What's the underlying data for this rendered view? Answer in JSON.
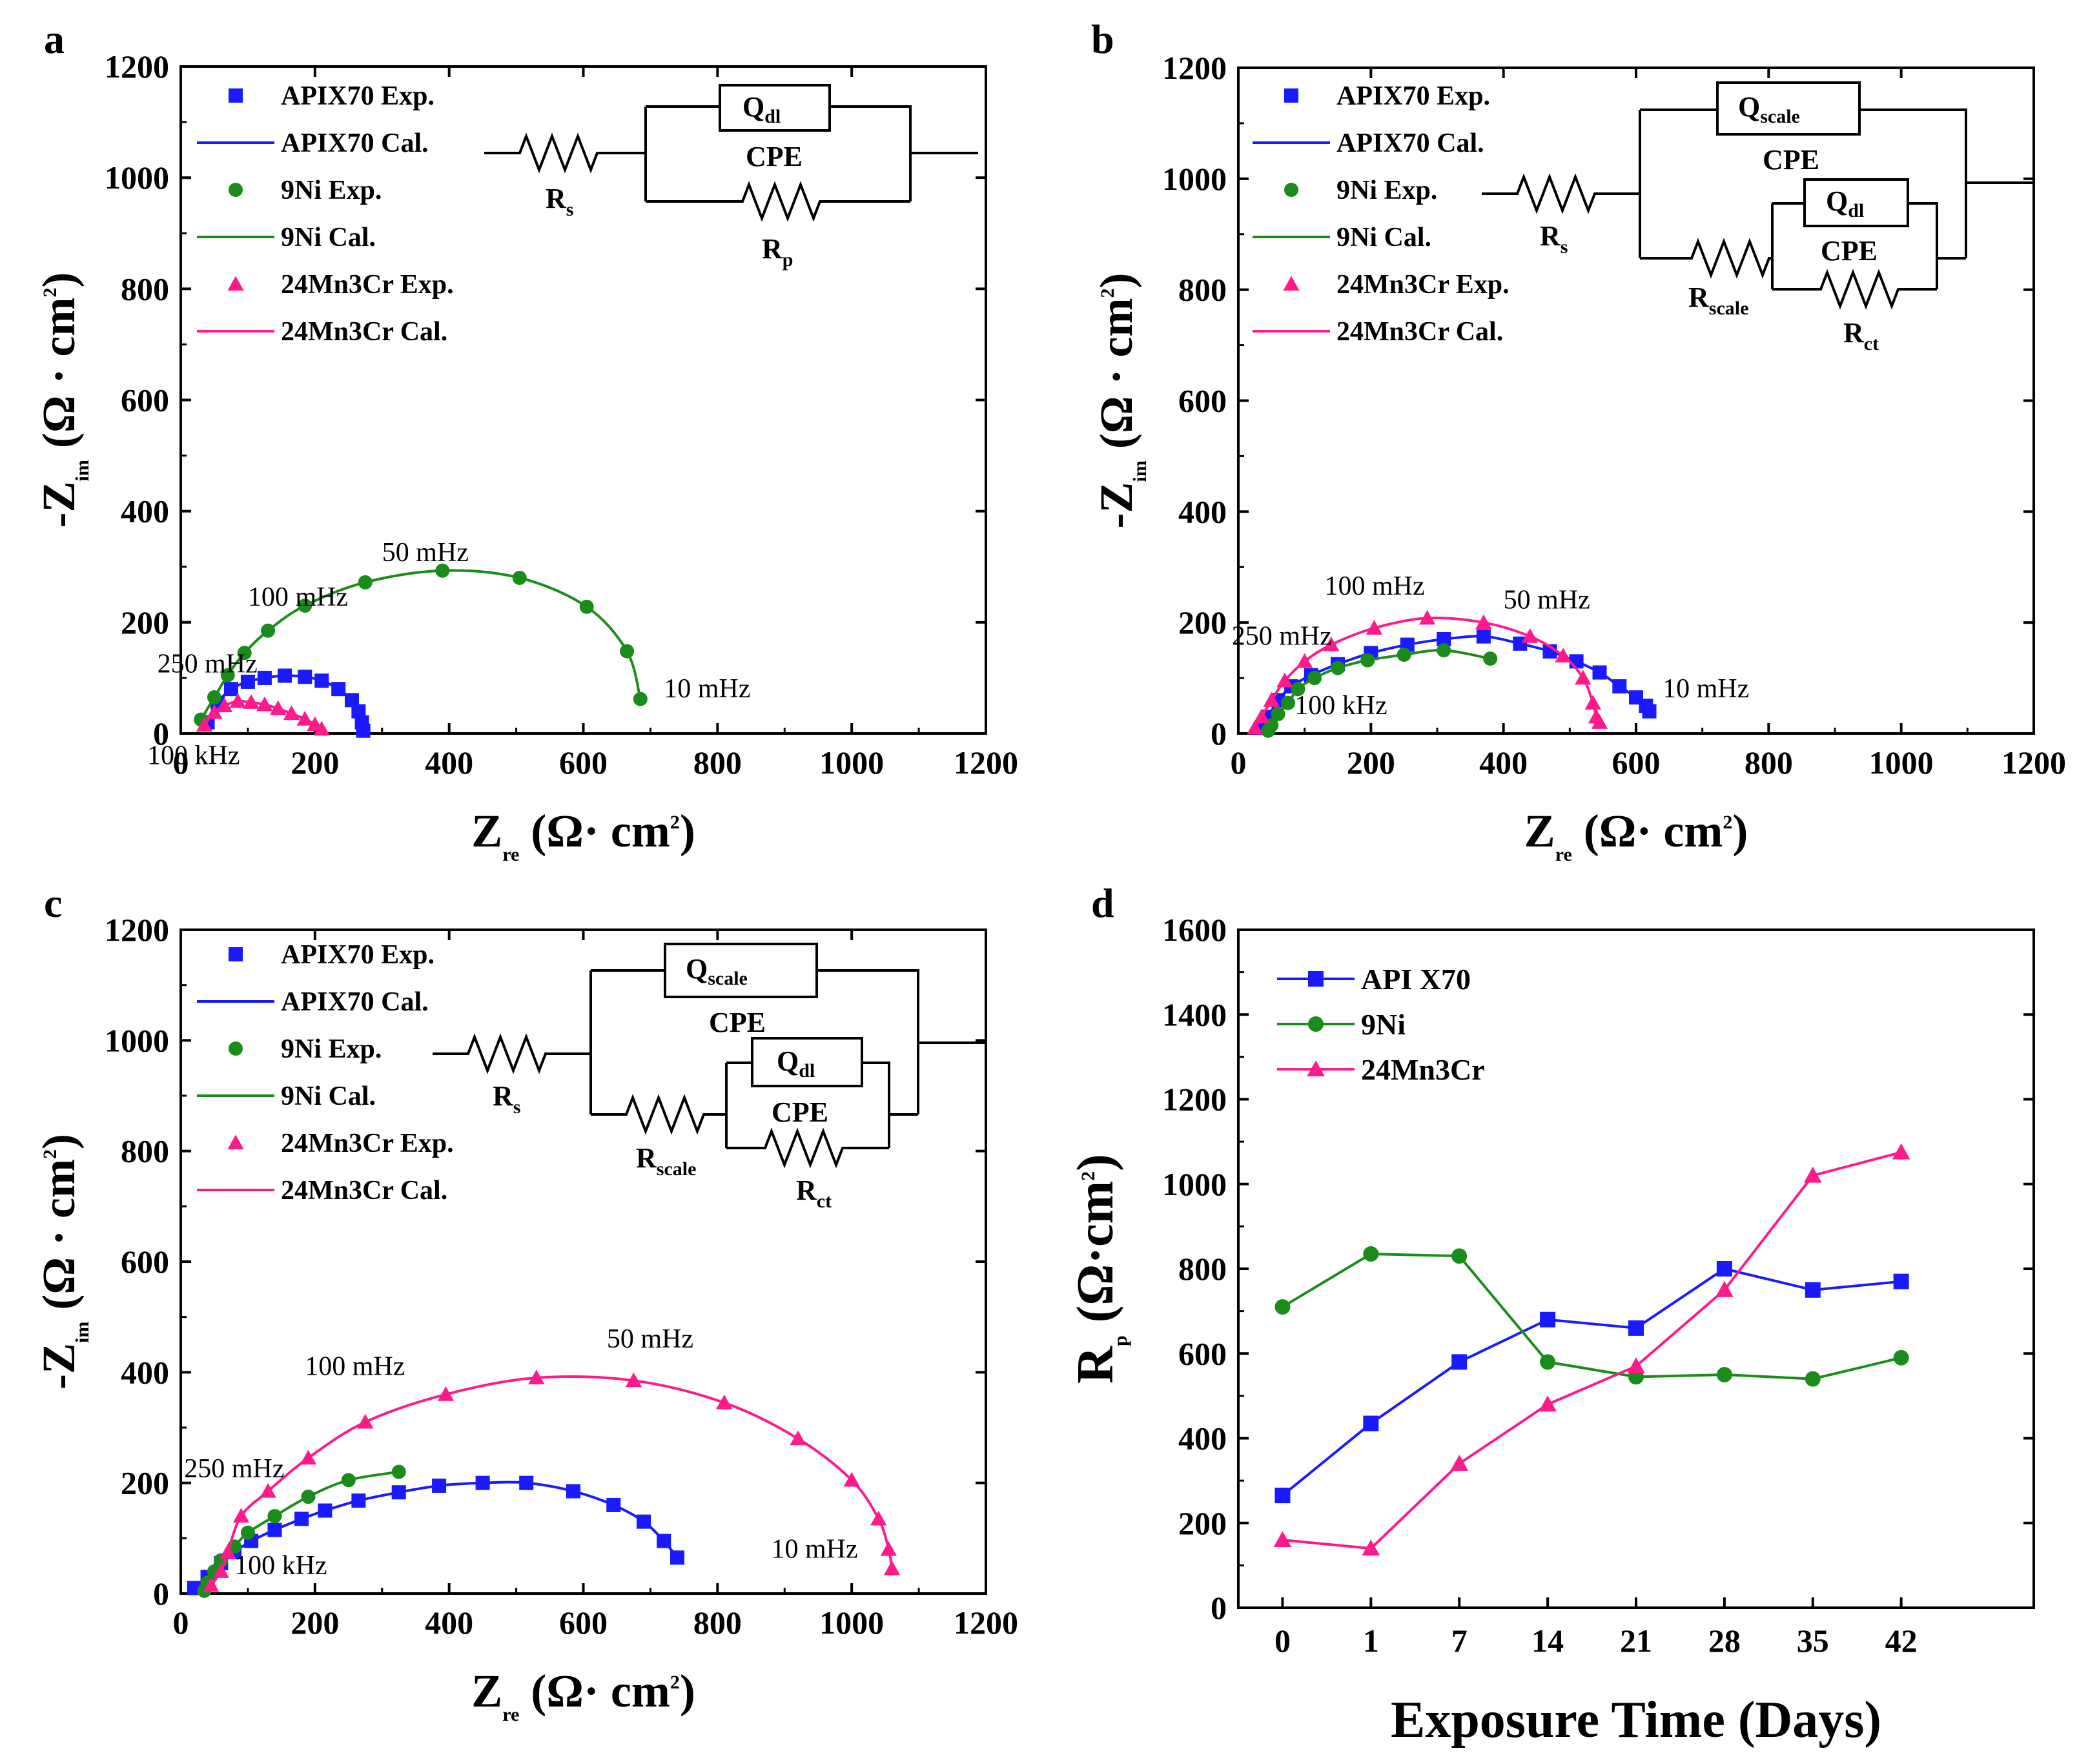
{
  "chart_data": [
    {
      "type": "scatter",
      "panel": "a",
      "title": "",
      "xlabel": {
        "main": "Z",
        "sub": "re",
        "unit": "(Ω· cm",
        "sup": "2",
        "close": ")"
      },
      "ylabel": {
        "main": "-Z",
        "sub": "im",
        "unit": "(Ω · cm",
        "sup": "2",
        "close": ")"
      },
      "xlim": [
        0,
        1200
      ],
      "ylim": [
        0,
        1200
      ],
      "xticks": [
        "0",
        "200",
        "400",
        "600",
        "800",
        "1000",
        "1200"
      ],
      "yticks": [
        "0",
        "200",
        "400",
        "600",
        "800",
        "1000",
        "1200"
      ],
      "legend": [
        "APIX70 Exp.",
        "APIX70 Cal.",
        "9Ni Exp.",
        "9Ni Cal.",
        "24Mn3Cr Exp.",
        "24Mn3Cr Cal."
      ],
      "circuit": {
        "rs": {
          "main": "R",
          "sub": "s"
        },
        "rp": {
          "main": "R",
          "sub": "p"
        },
        "q": {
          "main": "Q",
          "sub": "dl"
        },
        "cpe": "CPE"
      },
      "annotations": [
        {
          "text": "50 mHz",
          "x": 300,
          "y": 310
        },
        {
          "text": "100 mHz",
          "x": 100,
          "y": 230
        },
        {
          "text": "250 mHz",
          "x": -35,
          "y": 110
        },
        {
          "text": "10 mHz",
          "x": 720,
          "y": 65
        },
        {
          "text": "100 kHz",
          "x": -50,
          "y": -55
        }
      ],
      "series": [
        {
          "name": "APIX70",
          "color": "#1a1aff",
          "marker": "square",
          "x": [
            40,
            55,
            75,
            100,
            125,
            155,
            185,
            210,
            235,
            255,
            265,
            270,
            272
          ],
          "y": [
            20,
            55,
            80,
            93,
            100,
            104,
            102,
            95,
            80,
            60,
            40,
            20,
            5
          ]
        },
        {
          "name": "9Ni",
          "color": "#1a8c1a",
          "marker": "circle",
          "x": [
            30,
            50,
            70,
            95,
            130,
            185,
            275,
            390,
            505,
            605,
            665,
            685
          ],
          "y": [
            25,
            65,
            105,
            145,
            185,
            230,
            272,
            293,
            280,
            228,
            148,
            62
          ]
        },
        {
          "name": "24Mn3Cr",
          "color": "#ff1a8c",
          "marker": "triangle",
          "x": [
            35,
            50,
            65,
            85,
            105,
            125,
            145,
            165,
            185,
            200,
            210
          ],
          "y": [
            15,
            38,
            50,
            58,
            56,
            52,
            45,
            36,
            26,
            16,
            8
          ]
        }
      ]
    },
    {
      "type": "scatter",
      "panel": "b",
      "title": "",
      "xlabel": {
        "main": "Z",
        "sub": "re",
        "unit": "(Ω· cm",
        "sup": "2",
        "close": ")"
      },
      "ylabel": {
        "main": "-Z",
        "sub": "im",
        "unit": "(Ω · cm",
        "sup": "2",
        "close": ")"
      },
      "xlim": [
        0,
        1200
      ],
      "ylim": [
        0,
        1200
      ],
      "xticks": [
        "0",
        "200",
        "400",
        "600",
        "800",
        "1000",
        "1200"
      ],
      "yticks": [
        "0",
        "200",
        "400",
        "600",
        "800",
        "1000",
        "1200"
      ],
      "legend": [
        "APIX70 Exp.",
        "APIX70 Cal.",
        "9Ni Exp.",
        "9Ni Cal.",
        "24Mn3Cr Exp.",
        "24Mn3Cr Cal."
      ],
      "circuit": {
        "rs": {
          "main": "R",
          "sub": "s"
        },
        "rscale": {
          "main": "R",
          "sub": "scale"
        },
        "rct": {
          "main": "R",
          "sub": "ct"
        },
        "qscale": {
          "main": "Q",
          "sub": "scale"
        },
        "qdl": {
          "main": "Q",
          "sub": "dl"
        },
        "cpe": "CPE"
      },
      "annotations": [
        {
          "text": "100 mHz",
          "x": 130,
          "y": 250
        },
        {
          "text": "50 mHz",
          "x": 400,
          "y": 225
        },
        {
          "text": "250 mHz",
          "x": -10,
          "y": 160
        },
        {
          "text": "10 mHz",
          "x": 640,
          "y": 65
        },
        {
          "text": "100 kHz",
          "x": 85,
          "y": 35
        }
      ],
      "series": [
        {
          "name": "APIX70",
          "color": "#1a1aff",
          "marker": "square",
          "x": [
            35,
            45,
            60,
            80,
            110,
            150,
            200,
            255,
            310,
            370,
            425,
            470,
            510,
            545,
            575,
            600,
            615,
            620
          ],
          "y": [
            10,
            30,
            60,
            85,
            105,
            125,
            145,
            160,
            170,
            175,
            162,
            148,
            130,
            110,
            85,
            65,
            50,
            40
          ]
        },
        {
          "name": "9Ni",
          "color": "#1a8c1a",
          "marker": "circle",
          "x": [
            45,
            50,
            60,
            75,
            90,
            115,
            150,
            195,
            250,
            310,
            380
          ],
          "y": [
            5,
            15,
            35,
            55,
            80,
            100,
            118,
            132,
            142,
            150,
            135
          ]
        },
        {
          "name": "24Mn3Cr",
          "color": "#ff1a8c",
          "marker": "triangle",
          "x": [
            25,
            35,
            50,
            70,
            100,
            140,
            205,
            285,
            370,
            440,
            490,
            520,
            535,
            540,
            545
          ],
          "y": [
            10,
            30,
            60,
            95,
            130,
            160,
            190,
            208,
            200,
            175,
            140,
            100,
            55,
            30,
            20
          ]
        }
      ]
    },
    {
      "type": "scatter",
      "panel": "c",
      "title": "",
      "xlabel": {
        "main": "Z",
        "sub": "re",
        "unit": "(Ω· cm",
        "sup": "2",
        "close": ")"
      },
      "ylabel": {
        "main": "-Z",
        "sub": "im",
        "unit": "(Ω · cm",
        "sup": "2",
        "close": ")"
      },
      "xlim": [
        0,
        1200
      ],
      "ylim": [
        0,
        1200
      ],
      "xticks": [
        "0",
        "200",
        "400",
        "600",
        "800",
        "1000",
        "1200"
      ],
      "yticks": [
        "0",
        "200",
        "400",
        "600",
        "800",
        "1000",
        "1200"
      ],
      "legend": [
        "APIX70 Exp.",
        "APIX70 Cal.",
        "9Ni Exp.",
        "9Ni Cal.",
        "24Mn3Cr Exp.",
        "24Mn3Cr Cal."
      ],
      "circuit": {
        "rs": {
          "main": "R",
          "sub": "s"
        },
        "rscale": {
          "main": "R",
          "sub": "scale"
        },
        "rct": {
          "main": "R",
          "sub": "ct"
        },
        "qscale": {
          "main": "Q",
          "sub": "scale"
        },
        "qdl": {
          "main": "Q",
          "sub": "dl"
        },
        "cpe": "CPE"
      },
      "annotations": [
        {
          "text": "100 mHz",
          "x": 185,
          "y": 395
        },
        {
          "text": "50 mHz",
          "x": 635,
          "y": 445
        },
        {
          "text": "250 mHz",
          "x": 5,
          "y": 210
        },
        {
          "text": "10 mHz",
          "x": 880,
          "y": 65
        },
        {
          "text": "100 kHz",
          "x": 80,
          "y": 35
        }
      ],
      "series": [
        {
          "name": "APIX70",
          "color": "#1a1aff",
          "marker": "square",
          "x": [
            20,
            40,
            60,
            80,
            105,
            140,
            180,
            215,
            265,
            325,
            385,
            450,
            515,
            585,
            645,
            690,
            720,
            740
          ],
          "y": [
            10,
            30,
            55,
            75,
            95,
            115,
            135,
            150,
            168,
            183,
            195,
            200,
            200,
            185,
            160,
            130,
            95,
            65
          ]
        },
        {
          "name": "9Ni",
          "color": "#1a8c1a",
          "marker": "circle",
          "x": [
            35,
            40,
            50,
            60,
            80,
            100,
            140,
            190,
            250,
            325
          ],
          "y": [
            5,
            20,
            40,
            60,
            85,
            110,
            140,
            175,
            205,
            220
          ]
        },
        {
          "name": "24Mn3Cr",
          "color": "#ff1a8c",
          "marker": "triangle",
          "x": [
            45,
            60,
            70,
            90,
            130,
            190,
            275,
            395,
            530,
            675,
            810,
            920,
            1000,
            1040,
            1055,
            1060
          ],
          "y": [
            15,
            40,
            75,
            140,
            185,
            245,
            310,
            360,
            390,
            385,
            345,
            280,
            205,
            135,
            80,
            45
          ]
        }
      ]
    },
    {
      "type": "line",
      "panel": "d",
      "title": "",
      "xlabel": "Exposure Time (Days)",
      "ylabel": {
        "main": "R",
        "sub": "p",
        "unit": " (Ω·cm",
        "sup": "2",
        "close": ")"
      },
      "categories": [
        "0",
        "1",
        "7",
        "14",
        "21",
        "28",
        "35",
        "42"
      ],
      "ylim": [
        0,
        1600
      ],
      "yticks": [
        "0",
        "200",
        "400",
        "600",
        "800",
        "1000",
        "1200",
        "1400",
        "1600"
      ],
      "legend_position": "top-left",
      "series": [
        {
          "name": "API X70",
          "color": "#1a1aff",
          "marker": "square",
          "values": [
            265,
            435,
            580,
            680,
            660,
            800,
            750,
            770
          ]
        },
        {
          "name": "9Ni",
          "color": "#1a8c1a",
          "marker": "circle",
          "values": [
            710,
            835,
            830,
            580,
            545,
            550,
            540,
            590
          ]
        },
        {
          "name": "24Mn3Cr",
          "color": "#ff1a8c",
          "marker": "triangle",
          "values": [
            160,
            140,
            340,
            480,
            570,
            750,
            1020,
            1075
          ]
        }
      ]
    }
  ],
  "panel_labels": [
    "a",
    "b",
    "c",
    "d"
  ]
}
